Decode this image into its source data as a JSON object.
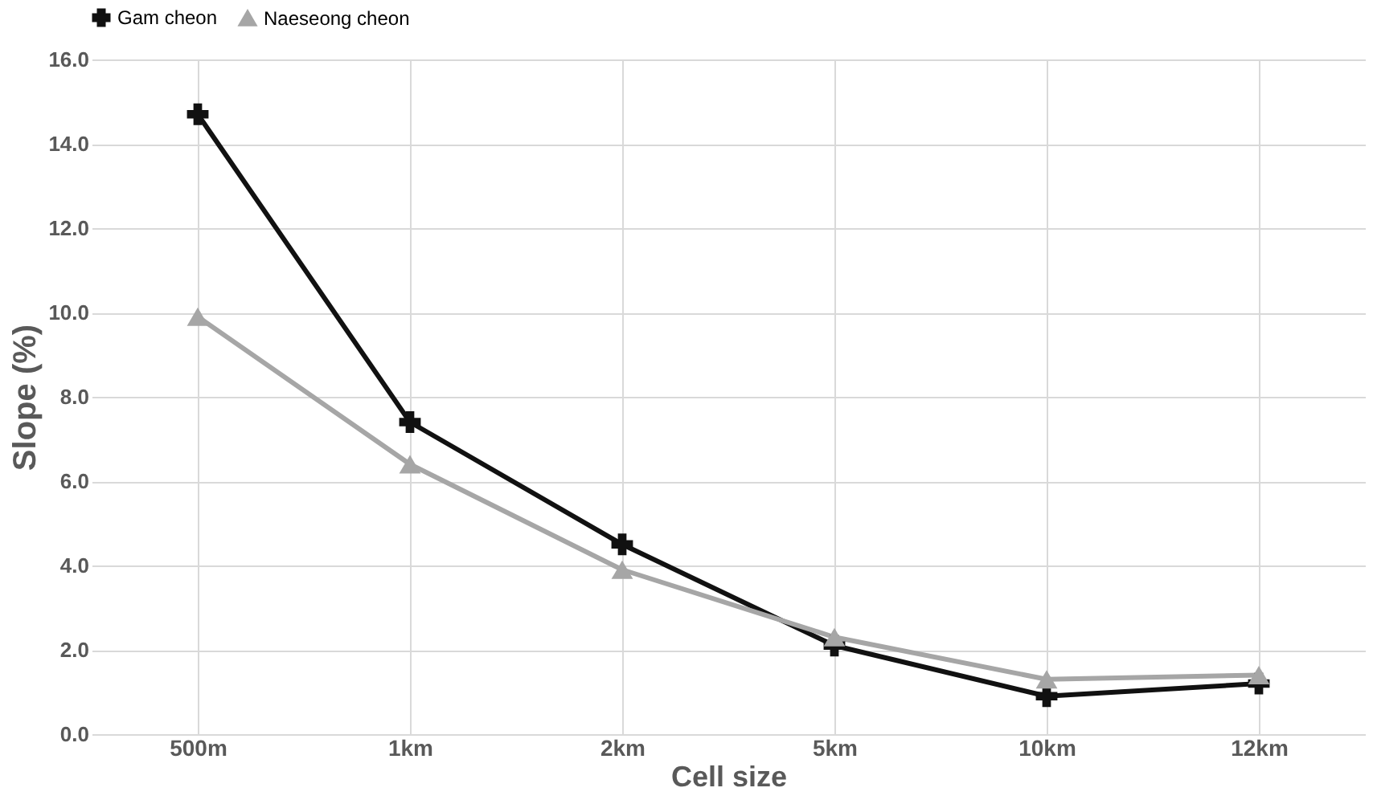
{
  "chart_data": {
    "type": "line",
    "xlabel": "Cell size",
    "ylabel": "Slope (%)",
    "categories": [
      "500m",
      "1km",
      "2km",
      "5km",
      "10km",
      "12km"
    ],
    "series": [
      {
        "name": "Gam cheon",
        "color": "#111111",
        "marker": "cross",
        "values": [
          14.7,
          7.4,
          4.5,
          2.1,
          0.9,
          1.2
        ]
      },
      {
        "name": "Naeseong cheon",
        "color": "#a6a6a6",
        "marker": "triangle",
        "values": [
          9.9,
          6.4,
          3.9,
          2.3,
          1.3,
          1.4
        ]
      }
    ],
    "ylim": [
      0,
      16
    ],
    "yticks": [
      {
        "value": 0,
        "label": "0.0"
      },
      {
        "value": 2,
        "label": "2.0"
      },
      {
        "value": 4,
        "label": "4.0"
      },
      {
        "value": 6,
        "label": "6.0"
      },
      {
        "value": 8,
        "label": "8.0"
      },
      {
        "value": 10,
        "label": "10.0"
      },
      {
        "value": 12,
        "label": "12.0"
      },
      {
        "value": 14,
        "label": "14.0"
      },
      {
        "value": 16,
        "label": "16.0"
      }
    ],
    "grid": true,
    "legend": "top",
    "line_style": "solid"
  }
}
